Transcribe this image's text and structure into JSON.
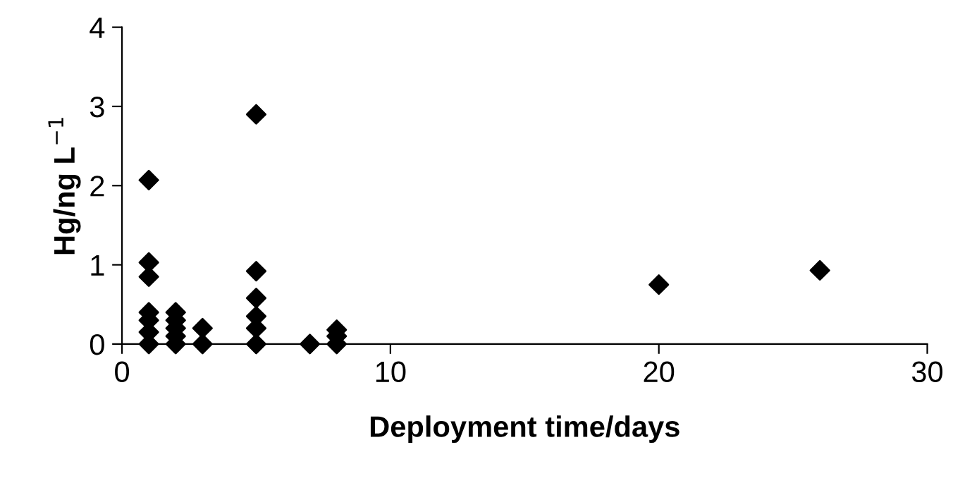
{
  "chart_data": {
    "type": "scatter",
    "xlabel": "Deployment time/days",
    "ylabel": "Hg/ng L$^{−1}$",
    "series": [
      {
        "color": "#000000",
        "x": [
          1,
          1,
          1,
          1,
          1,
          1,
          1,
          2,
          2,
          2,
          2,
          2,
          3,
          3,
          5,
          5,
          5,
          5,
          5,
          5,
          7,
          8,
          8,
          8,
          20,
          26
        ],
        "values": [
          2.07,
          1.03,
          0.85,
          0.4,
          0.3,
          0.15,
          0.0,
          0.4,
          0.3,
          0.2,
          0.1,
          0.0,
          0.2,
          0.0,
          2.9,
          0.92,
          0.58,
          0.35,
          0.2,
          0.0,
          0.0,
          0.18,
          0.1,
          0.0,
          0.75,
          0.93
        ]
      }
    ],
    "marker": "diamond",
    "xlim": [
      0,
      30
    ],
    "ylim": [
      0,
      4
    ],
    "xticks": [
      0,
      10,
      20,
      30
    ],
    "yticks": [
      0,
      1,
      2,
      3,
      4
    ],
    "grid": false,
    "legend": false
  }
}
